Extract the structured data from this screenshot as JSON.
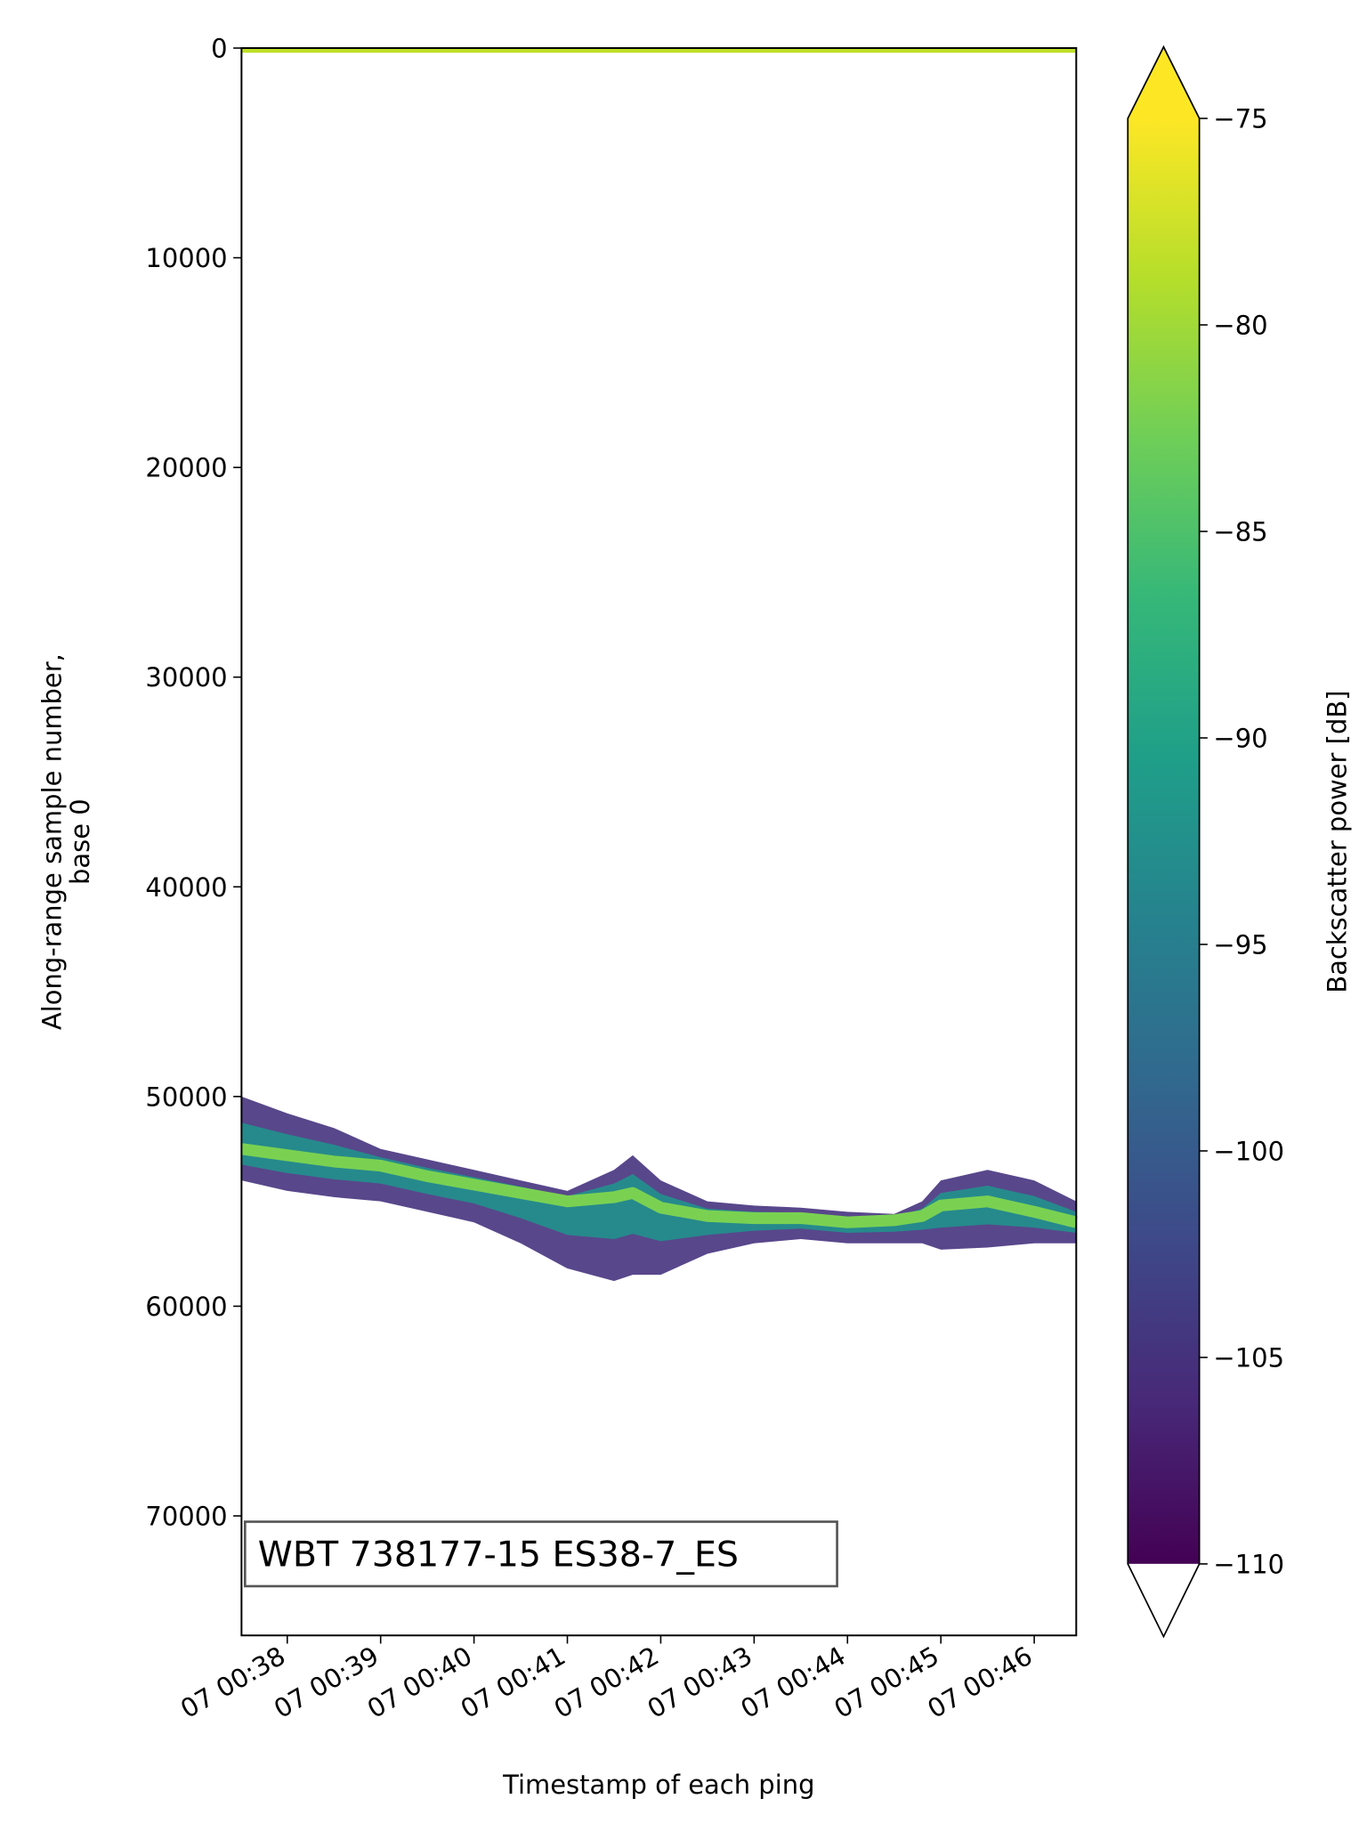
{
  "chart_data": {
    "type": "echogram",
    "xlabel": "Timestamp of each ping",
    "ylabel": [
      "Along-range sample number,",
      "base 0"
    ],
    "annotation": "WBT 738177-15 ES38-7_ES",
    "xlim": [
      37.51,
      46.45
    ],
    "xticks": [
      {
        "value": 38,
        "label": "07 00:38"
      },
      {
        "value": 39,
        "label": "07 00:39"
      },
      {
        "value": 40,
        "label": "07 00:40"
      },
      {
        "value": 41,
        "label": "07 00:41"
      },
      {
        "value": 42,
        "label": "07 00:42"
      },
      {
        "value": 43,
        "label": "07 00:43"
      },
      {
        "value": 44,
        "label": "07 00:44"
      },
      {
        "value": 45,
        "label": "07 00:45"
      },
      {
        "value": 46,
        "label": "07 00:46"
      }
    ],
    "ylim": [
      0,
      75700
    ],
    "invert_y": true,
    "yticks": [
      0,
      10000,
      20000,
      30000,
      40000,
      50000,
      60000,
      70000
    ],
    "band": {
      "x": [
        37.51,
        38.0,
        38.5,
        39.0,
        39.5,
        40.0,
        40.5,
        41.0,
        41.5,
        41.7,
        42.0,
        42.5,
        43.0,
        43.5,
        44.0,
        44.5,
        44.8,
        45.0,
        45.5,
        46.0,
        46.45
      ],
      "top": [
        50000,
        50800,
        51500,
        52500,
        53000,
        53500,
        54000,
        54500,
        53500,
        52800,
        54000,
        55000,
        55200,
        55300,
        55500,
        55600,
        55000,
        54000,
        53500,
        54000,
        55000
      ],
      "core": [
        52500,
        52800,
        53100,
        53300,
        53800,
        54200,
        54600,
        55000,
        54800,
        54600,
        55300,
        55700,
        55800,
        55800,
        56000,
        55900,
        55700,
        55200,
        55000,
        55500,
        56000
      ],
      "bottom": [
        54000,
        54500,
        54800,
        55000,
        55500,
        56000,
        57000,
        58200,
        58800,
        58500,
        58500,
        57500,
        57000,
        56800,
        57000,
        57000,
        57000,
        57300,
        57200,
        57000,
        57000
      ],
      "edge_color": "#46337e",
      "mid_color": "#21918c",
      "core_color": "#7ad151"
    },
    "surface_color": "#bddf26",
    "colorbar": {
      "label": "Backscatter power [dB]",
      "colormap": "viridis",
      "clim": [
        -110,
        -75
      ],
      "extend": "both",
      "under_color": "#ffffff",
      "ticks": [
        {
          "value": -75,
          "label": "−75"
        },
        {
          "value": -80,
          "label": "−80"
        },
        {
          "value": -85,
          "label": "−85"
        },
        {
          "value": -90,
          "label": "−90"
        },
        {
          "value": -95,
          "label": "−95"
        },
        {
          "value": -100,
          "label": "−100"
        },
        {
          "value": -105,
          "label": "−105"
        },
        {
          "value": -110,
          "label": "−110"
        }
      ]
    }
  }
}
